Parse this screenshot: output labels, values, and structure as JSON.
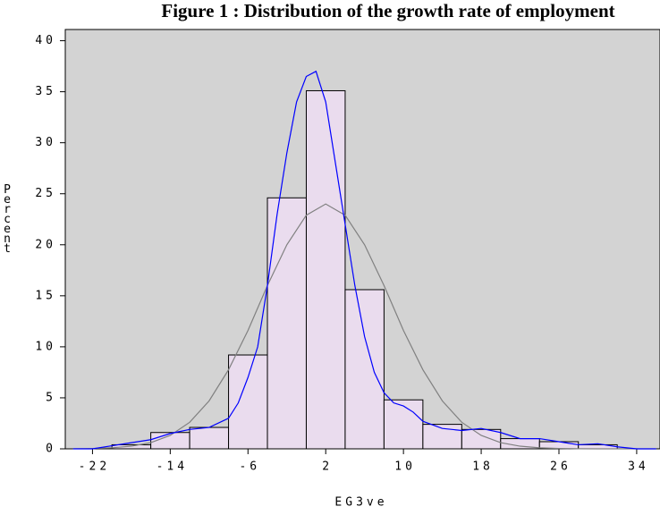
{
  "chart_data": {
    "type": "histogram",
    "title": "Figure 1 : Distribution of the growth rate of employment",
    "x_label": "EG3ve",
    "y_label": "Percent",
    "bins": [
      -20,
      -16,
      -12,
      -8,
      -4,
      0,
      4,
      8,
      12,
      16,
      20,
      24,
      28,
      32
    ],
    "values": [
      0.4,
      1.6,
      2.1,
      9.2,
      24.6,
      35.1,
      15.6,
      4.8,
      2.4,
      1.9,
      1.0,
      0.7,
      0.4
    ],
    "color": "#eadcee",
    "background": "#d3d3d3",
    "xlim": [
      -24.8,
      36.4
    ],
    "xticks": [
      -22,
      -14,
      -6,
      2,
      10,
      18,
      26,
      34
    ],
    "ylim": [
      0,
      41.1
    ],
    "yticks": [
      0,
      5,
      10,
      15,
      20,
      25,
      30,
      35,
      40
    ],
    "lines": [
      {
        "color": "#808080",
        "x": [
          -24,
          -22,
          -20,
          -18,
          -16,
          -14,
          -12,
          -10,
          -8,
          -6,
          -4,
          -2,
          0,
          2,
          4,
          6,
          8,
          10,
          12,
          14,
          16,
          18,
          20,
          22,
          24,
          26,
          28,
          30,
          32,
          34,
          36
        ],
        "values": [
          0.01,
          0.04,
          0.1,
          0.26,
          0.61,
          1.32,
          2.6,
          4.7,
          7.75,
          11.6,
          16.0,
          20.0,
          22.9,
          24.0,
          22.9,
          20.0,
          16.0,
          11.6,
          7.75,
          4.7,
          2.6,
          1.32,
          0.61,
          0.26,
          0.1,
          0.04,
          0.01,
          0,
          0,
          0,
          0
        ]
      },
      {
        "color": "#0000ff",
        "x": [
          -24,
          -22,
          -20,
          -18,
          -16,
          -14,
          -12,
          -10,
          -8,
          -7,
          -6,
          -5,
          -4,
          -3,
          -2,
          -1,
          0,
          1,
          2,
          3,
          4,
          5,
          6,
          7,
          8,
          9,
          10,
          11,
          12,
          14,
          16,
          18,
          20,
          22,
          24,
          26,
          28,
          30,
          32,
          34,
          36
        ],
        "values": [
          0,
          0,
          0.3,
          0.6,
          0.9,
          1.5,
          1.9,
          2.1,
          3.0,
          4.5,
          7.0,
          10.0,
          16.0,
          23.0,
          29.0,
          34.0,
          36.5,
          37.0,
          34.0,
          28.0,
          22.0,
          16.0,
          11.0,
          7.5,
          5.5,
          4.5,
          4.2,
          3.6,
          2.7,
          2.0,
          1.8,
          2.0,
          1.6,
          1.0,
          1.0,
          0.7,
          0.4,
          0.5,
          0.2,
          0,
          0
        ]
      }
    ]
  }
}
